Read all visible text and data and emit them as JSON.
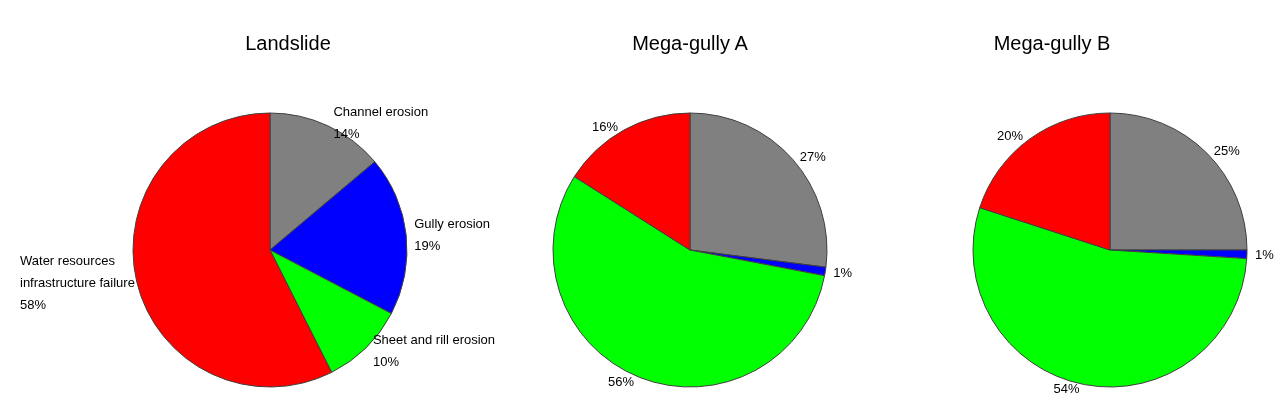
{
  "chart_data": [
    {
      "type": "pie",
      "title": "Landslide",
      "categories": [
        "Channel erosion",
        "Gully erosion",
        "Sheet and rill erosion",
        "Water resources infrastructure failure"
      ],
      "values": [
        14,
        19,
        10,
        58
      ],
      "value_labels": [
        "14%",
        "19%",
        "10%",
        "58%"
      ],
      "colors": [
        "#808080",
        "#0000ff",
        "#00ff00",
        "#ff0000"
      ]
    },
    {
      "type": "pie",
      "title": "Mega-gully A",
      "categories": [
        null,
        null,
        null,
        null
      ],
      "values": [
        27,
        1,
        56,
        16
      ],
      "value_labels": [
        "27%",
        "1%",
        "56%",
        "16%"
      ],
      "colors": [
        "#808080",
        "#0000ff",
        "#00ff00",
        "#ff0000"
      ]
    },
    {
      "type": "pie",
      "title": "Mega-gully B",
      "categories": [
        null,
        null,
        null,
        null
      ],
      "values": [
        25,
        1,
        54,
        20
      ],
      "value_labels": [
        "25%",
        "1%",
        "54%",
        "20%"
      ],
      "colors": [
        "#808080",
        "#0000ff",
        "#00ff00",
        "#ff0000"
      ]
    }
  ]
}
